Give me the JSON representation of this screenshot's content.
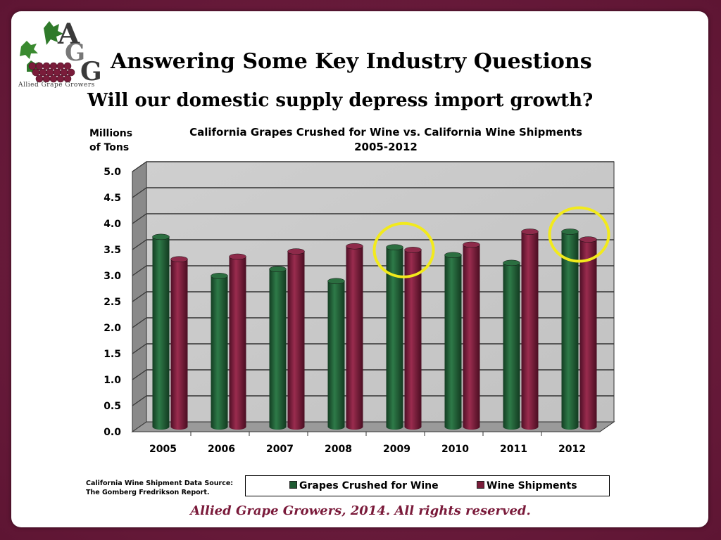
{
  "slide": {
    "title": "Answering Some Key Industry Questions",
    "subtitle": "Will our domestic supply depress import growth?",
    "logo_text": "Allied Grape Growers",
    "footer": "Allied Grape Growers, 2014.  All rights reserved.",
    "source_line1": "California Wine Shipment  Data Source:",
    "source_line2": "The Gomberg Fredrikson Report."
  },
  "chart_data": {
    "type": "bar",
    "title": "California Grapes Crushed for Wine vs. California Wine Shipments",
    "subtitle": "2005-2012",
    "ylabel_line1": "Millions",
    "ylabel_line2": "of Tons",
    "ylim": [
      0,
      5
    ],
    "yticks": [
      "0.0",
      "0.5",
      "1.0",
      "1.5",
      "2.0",
      "2.5",
      "3.0",
      "3.5",
      "4.0",
      "4.5",
      "5.0"
    ],
    "categories": [
      "2005",
      "2006",
      "2007",
      "2008",
      "2009",
      "2010",
      "2011",
      "2012"
    ],
    "series": [
      {
        "name": "Grapes Crushed for Wine",
        "color": "#1e5a32",
        "values": [
          3.65,
          2.9,
          3.03,
          2.8,
          3.45,
          3.3,
          3.15,
          3.75
        ]
      },
      {
        "name": "Wine Shipments",
        "color": "#7a1c3a",
        "values": [
          3.22,
          3.27,
          3.37,
          3.47,
          3.4,
          3.5,
          3.75,
          3.6
        ]
      }
    ],
    "highlighted_categories": [
      "2009",
      "2012"
    ],
    "highlight_color": "#f2ea1c",
    "grid": true,
    "legend_position": "bottom"
  }
}
